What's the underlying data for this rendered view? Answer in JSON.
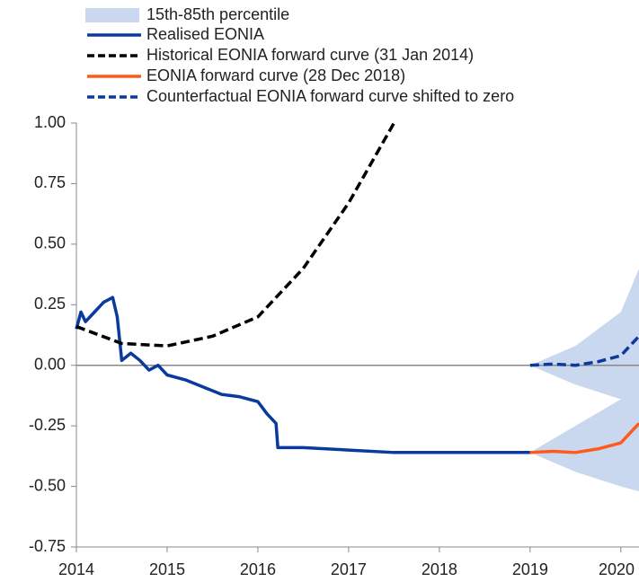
{
  "chart_data": {
    "type": "line",
    "xlim": [
      2014,
      2020.2
    ],
    "xticks": [
      2014,
      2015,
      2016,
      2017,
      2018,
      2019,
      2020
    ],
    "ylim": [
      -0.75,
      1.0
    ],
    "yticks": [
      {
        "value": 1.0,
        "label": "1.00"
      },
      {
        "value": 0.75,
        "label": "0.75"
      },
      {
        "value": 0.5,
        "label": "0.50"
      },
      {
        "value": 0.25,
        "label": "0.25"
      },
      {
        "value": 0,
        "label": "0.00"
      },
      {
        "value": -0.25,
        "label": "-0.25"
      },
      {
        "value": -0.5,
        "label": "-0.50"
      },
      {
        "value": -0.75,
        "label": "-0.75"
      }
    ],
    "band": {
      "name": "15th-85th percentile",
      "color": "#c9d8ee",
      "parts": [
        {
          "x": [
            2019,
            2019.5,
            2020,
            2020.2
          ],
          "upper": [
            0,
            0.08,
            0.22,
            0.4
          ],
          "lower": [
            0,
            -0.08,
            -0.14,
            -0.15
          ]
        },
        {
          "x": [
            2019,
            2019.5,
            2020,
            2020.2
          ],
          "upper": [
            -0.36,
            -0.25,
            -0.14,
            -0.05
          ],
          "lower": [
            -0.36,
            -0.44,
            -0.5,
            -0.52
          ]
        }
      ]
    },
    "series": [
      {
        "name": "Realised EONIA",
        "color": "#0a3a9e",
        "dash": false,
        "x": [
          2014,
          2014.05,
          2014.1,
          2014.2,
          2014.3,
          2014.4,
          2014.45,
          2014.5,
          2014.6,
          2014.7,
          2014.8,
          2014.9,
          2015,
          2015.2,
          2015.4,
          2015.6,
          2015.8,
          2016,
          2016.1,
          2016.2,
          2016.22,
          2016.5,
          2017,
          2017.5,
          2018,
          2018.5,
          2019
        ],
        "values": [
          0.15,
          0.22,
          0.18,
          0.22,
          0.26,
          0.28,
          0.2,
          0.02,
          0.05,
          0.02,
          -0.02,
          0.0,
          -0.04,
          -0.06,
          -0.09,
          -0.12,
          -0.13,
          -0.15,
          -0.2,
          -0.24,
          -0.34,
          -0.34,
          -0.35,
          -0.36,
          -0.36,
          -0.36,
          -0.36
        ]
      },
      {
        "name": "Historical EONIA forward curve (31 Jan 2014)",
        "color": "#000000",
        "dash": true,
        "x": [
          2014,
          2014.5,
          2015,
          2015.5,
          2016,
          2016.5,
          2017,
          2017.5
        ],
        "values": [
          0.16,
          0.09,
          0.08,
          0.12,
          0.2,
          0.4,
          0.67,
          1.0
        ]
      },
      {
        "name": "EONIA forward curve (28 Dec 2018)",
        "color": "#ff5a1a",
        "dash": false,
        "x": [
          2019,
          2019.25,
          2019.5,
          2019.75,
          2020,
          2020.2
        ],
        "values": [
          -0.36,
          -0.355,
          -0.36,
          -0.345,
          -0.32,
          -0.24
        ]
      },
      {
        "name": "Counterfactual EONIA forward curve shifted to zero",
        "color": "#0a3a9e",
        "dash": true,
        "x": [
          2019,
          2019.25,
          2019.5,
          2019.75,
          2020,
          2020.2
        ],
        "values": [
          0,
          0.005,
          0,
          0.015,
          0.04,
          0.12
        ]
      }
    ]
  }
}
